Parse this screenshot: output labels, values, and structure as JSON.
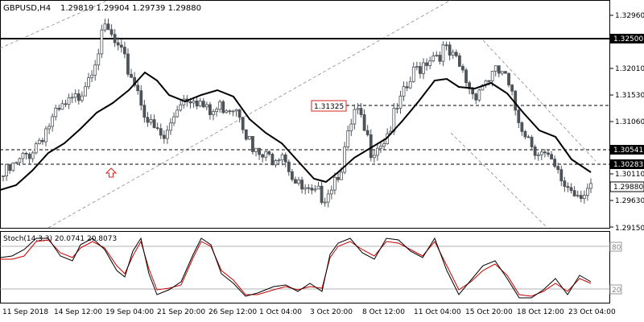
{
  "header": {
    "symbol": "GBPUSD,H4",
    "ohlc": "1.29819 1.29904 1.29739 1.29880"
  },
  "stoch_header": "Stoch(14,3,3) 20.0741 20.8073",
  "price_axis": [
    "1.32960",
    "1.32500",
    "1.32010",
    "1.31530",
    "1.31060",
    "1.30541",
    "1.30283",
    "1.30110",
    "1.29880",
    "1.29630",
    "1.29150"
  ],
  "stoch_axis": [
    "80",
    "20"
  ],
  "time_axis": [
    "11 Sep 2018",
    "14 Sep 12:00",
    "19 Sep 04:00",
    "21 Sep 20:00",
    "26 Sep 12:00",
    "1 Oct 04:00",
    "3 Oct 20:00",
    "8 Oct 12:00",
    "11 Oct 04:00",
    "15 Oct 20:00",
    "18 Oct 12:00",
    "23 Oct 04:00"
  ],
  "annotations": {
    "level_label": "1.31325"
  },
  "colors": {
    "candle": "#4d5358",
    "ma": "#000000",
    "stoch_main": "#000000",
    "stoch_signal": "#cc0000",
    "label_red": "#d9261c",
    "box_dark": "#000000"
  },
  "chart_data": {
    "type": "candlestick",
    "symbol": "GBPUSD",
    "timeframe": "H4",
    "ylim": [
      1.2915,
      1.332
    ],
    "horizontal_levels": [
      1.325,
      1.31325,
      1.30541,
      1.30283
    ],
    "last_price": 1.2988,
    "close_approx": [
      1.301,
      1.303,
      1.306,
      1.31,
      1.313,
      1.315,
      1.321,
      1.328,
      1.323,
      1.318,
      1.31,
      1.3075,
      1.315,
      1.316,
      1.312,
      1.314,
      1.314,
      1.305,
      1.304,
      1.306,
      1.299,
      1.297,
      1.298,
      1.303,
      1.313,
      1.306,
      1.308,
      1.314,
      1.32,
      1.323,
      1.324,
      1.321,
      1.316,
      1.319,
      1.32,
      1.312,
      1.307,
      1.304,
      1.3,
      1.298,
      1.299
    ],
    "stochastic": {
      "k": 20.0741,
      "d": 20.8073,
      "levels": [
        80,
        20
      ]
    }
  }
}
